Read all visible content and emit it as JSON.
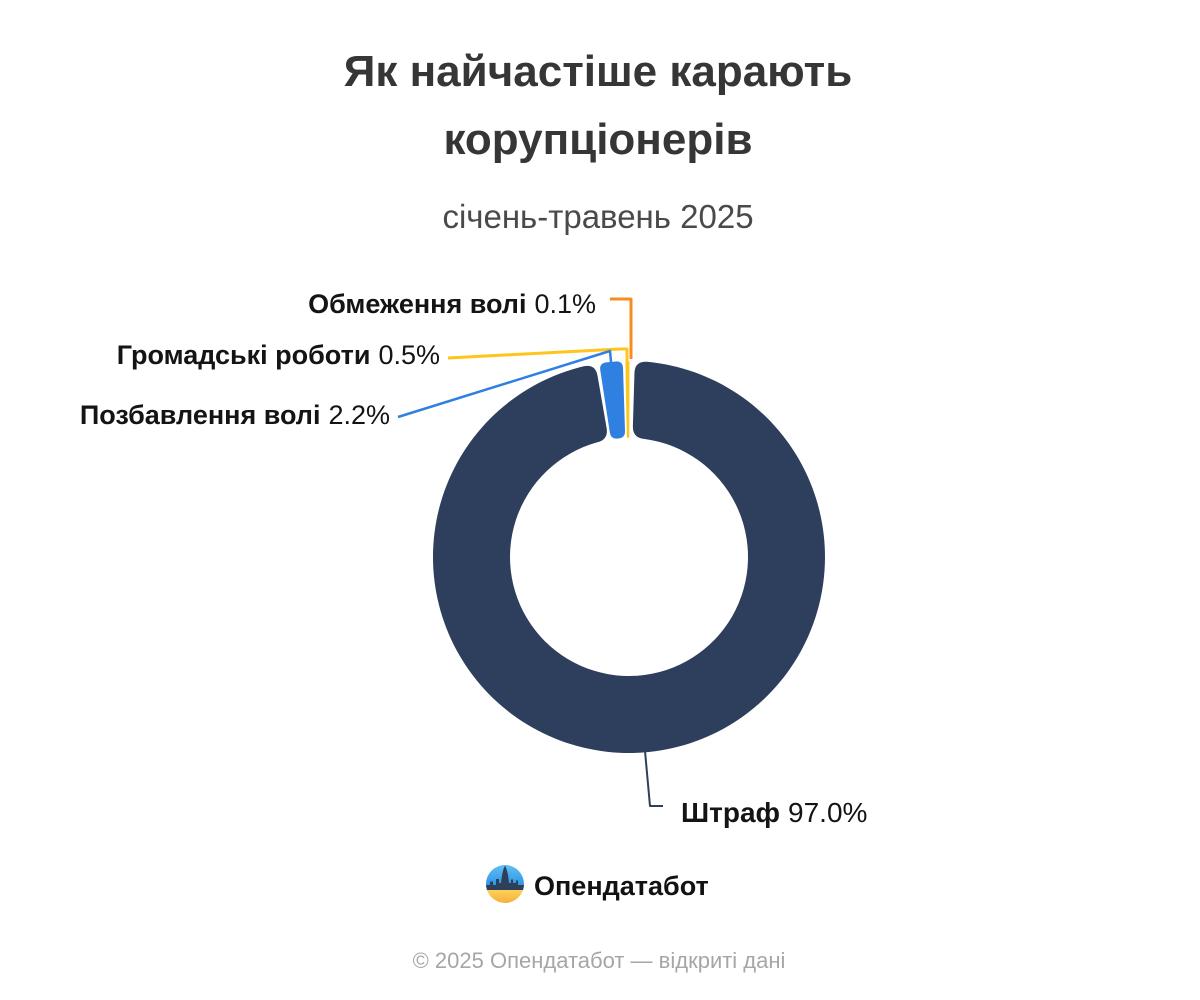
{
  "title_line1": "Як найчастіше карають",
  "title_line2": "корупціонерів",
  "subtitle": "січень-травень 2025",
  "chart_data": {
    "type": "pie",
    "variant": "donut",
    "title": "Як найчастіше карають корупціонерів",
    "subtitle": "січень-травень 2025",
    "unit": "%",
    "legend_position": "callouts",
    "slices": [
      {
        "label": "Штраф",
        "value": 97.0,
        "display": "97.0%",
        "color": "#2e3f5e"
      },
      {
        "label": "Позбавлення волі",
        "value": 2.2,
        "display": "2.2%",
        "color": "#2f80e0"
      },
      {
        "label": "Громадські роботи",
        "value": 0.5,
        "display": "0.5%",
        "color": "#fdc51d"
      },
      {
        "label": "Обмеження волі",
        "value": 0.1,
        "display": "0.1%",
        "color": "#f78c1f"
      }
    ]
  },
  "callouts": {
    "obmezhennia": {
      "name": "Обмеження волі",
      "value": "0.1%"
    },
    "hromadski": {
      "name": "Громадські роботи",
      "value": "0.5%"
    },
    "pozbavlennia": {
      "name": "Позбавлення волі",
      "value": "2.2%"
    },
    "shtraf": {
      "name": "Штраф",
      "value": "97.0%"
    }
  },
  "logo": {
    "text": "Опендатабот"
  },
  "footer": "© 2025 Опендатабот — відкриті дані",
  "colors": {
    "navy": "#2e3f5e",
    "blue": "#2f80e0",
    "yellow": "#fdc51d",
    "orange": "#f78c1f",
    "logo_blue_top": "#66c3f5",
    "logo_blue_bottom": "#2b92e4",
    "logo_yellow_top": "#ffdb5c",
    "logo_yellow_bottom": "#f2a93b"
  }
}
